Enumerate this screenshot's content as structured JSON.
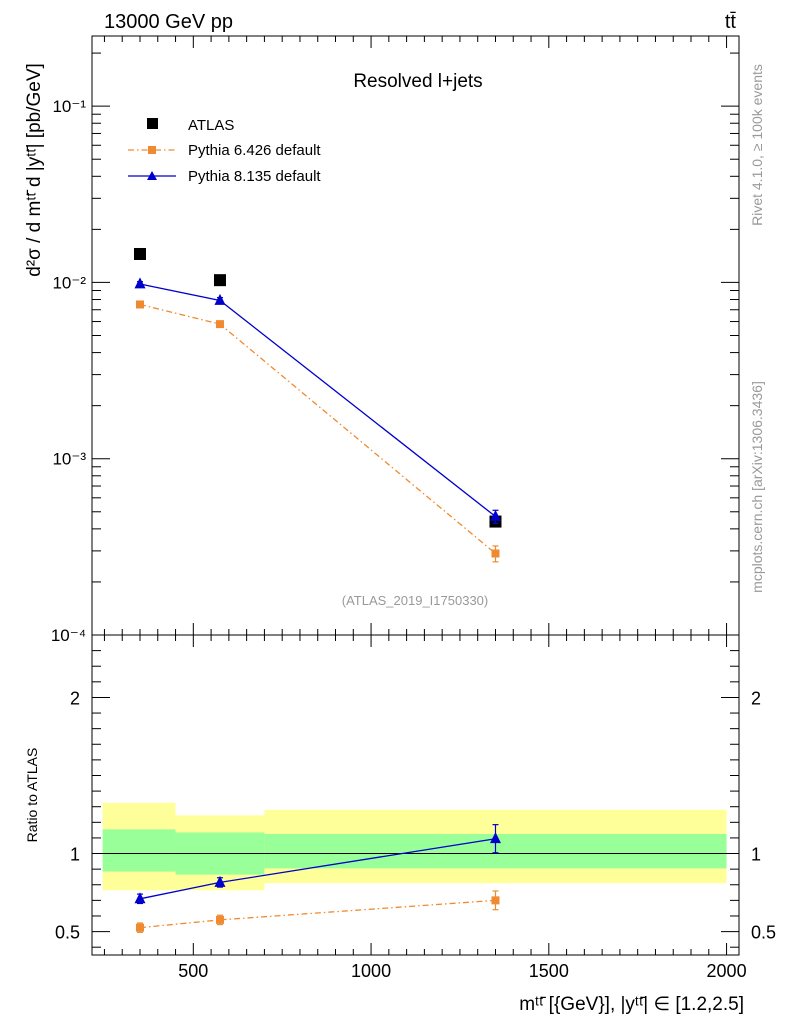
{
  "header": {
    "energy": "13000 GeV pp",
    "process": "tt̄"
  },
  "side_labels": {
    "rivet": "Rivet 4.1.0, ≥ 100k events",
    "mcplots": "mcplots.cern.ch [arXiv:1306.3436]"
  },
  "chart_data": [
    {
      "type": "scatter",
      "title": "Resolved l+jets",
      "watermark": "(ATLAS_2019_I1750330)",
      "ylabel": "d²σ / d mᵗᵗ̄ d |yᵗᵗ̄| [pb/GeV]",
      "yscale": "log",
      "xlim": [
        215,
        2035
      ],
      "ylim": [
        0.0001,
        0.25
      ],
      "yticks": [
        {
          "value": 0.1,
          "label": "10⁻¹"
        },
        {
          "value": 0.01,
          "label": "10⁻²"
        },
        {
          "value": 0.001,
          "label": "10⁻³"
        },
        {
          "value": 0.0001,
          "label": "10⁻⁴"
        }
      ],
      "series": [
        {
          "name": "ATLAS",
          "marker": "square",
          "color": "#000000",
          "x": [
            350,
            575,
            1350
          ],
          "y": [
            0.0145,
            0.0103,
            0.00044
          ]
        },
        {
          "name": "Pythia 6.426 default",
          "marker": "square",
          "line": "dashdot",
          "color": "#f08a30",
          "x": [
            350,
            575,
            1350
          ],
          "y": [
            0.0075,
            0.0058,
            0.00029
          ],
          "yerr": [
            0.0003,
            0.0002,
            3e-05
          ]
        },
        {
          "name": "Pythia 8.135 default",
          "marker": "triangle",
          "line": "solid",
          "color": "#0000cc",
          "x": [
            350,
            575,
            1350
          ],
          "y": [
            0.0098,
            0.0079,
            0.00047
          ],
          "yerr": [
            0.0003,
            0.0003,
            4e-05
          ]
        }
      ]
    },
    {
      "type": "scatter",
      "ylabel": "Ratio to ATLAS",
      "xlabel": "mᵗᵗ̄ [{GeV}], |yᵗᵗ̄| ∈ [1.2,2.5]",
      "xlim": [
        215,
        2035
      ],
      "ylim": [
        0.35,
        2.4
      ],
      "xticks": [
        500,
        1000,
        1500,
        2000
      ],
      "yticks": [
        0.5,
        1,
        2
      ],
      "bins": [
        {
          "xlo": 245,
          "xhi": 450,
          "stat_lo": 0.885,
          "stat_hi": 1.155,
          "tot_lo": 0.765,
          "tot_hi": 1.325
        },
        {
          "xlo": 450,
          "xhi": 700,
          "stat_lo": 0.865,
          "stat_hi": 1.135,
          "tot_lo": 0.765,
          "tot_hi": 1.245
        },
        {
          "xlo": 700,
          "xhi": 2000,
          "stat_lo": 0.905,
          "stat_hi": 1.125,
          "tot_lo": 0.81,
          "tot_hi": 1.28
        }
      ],
      "series": [
        {
          "name": "Pythia 6.426 default",
          "x": [
            350,
            575,
            1350
          ],
          "y": [
            0.525,
            0.575,
            0.7
          ],
          "yerr": [
            0.03,
            0.03,
            0.06
          ]
        },
        {
          "name": "Pythia 8.135 default",
          "x": [
            350,
            575,
            1350
          ],
          "y": [
            0.71,
            0.815,
            1.095
          ],
          "yerr": [
            0.03,
            0.03,
            0.09
          ]
        }
      ]
    }
  ]
}
